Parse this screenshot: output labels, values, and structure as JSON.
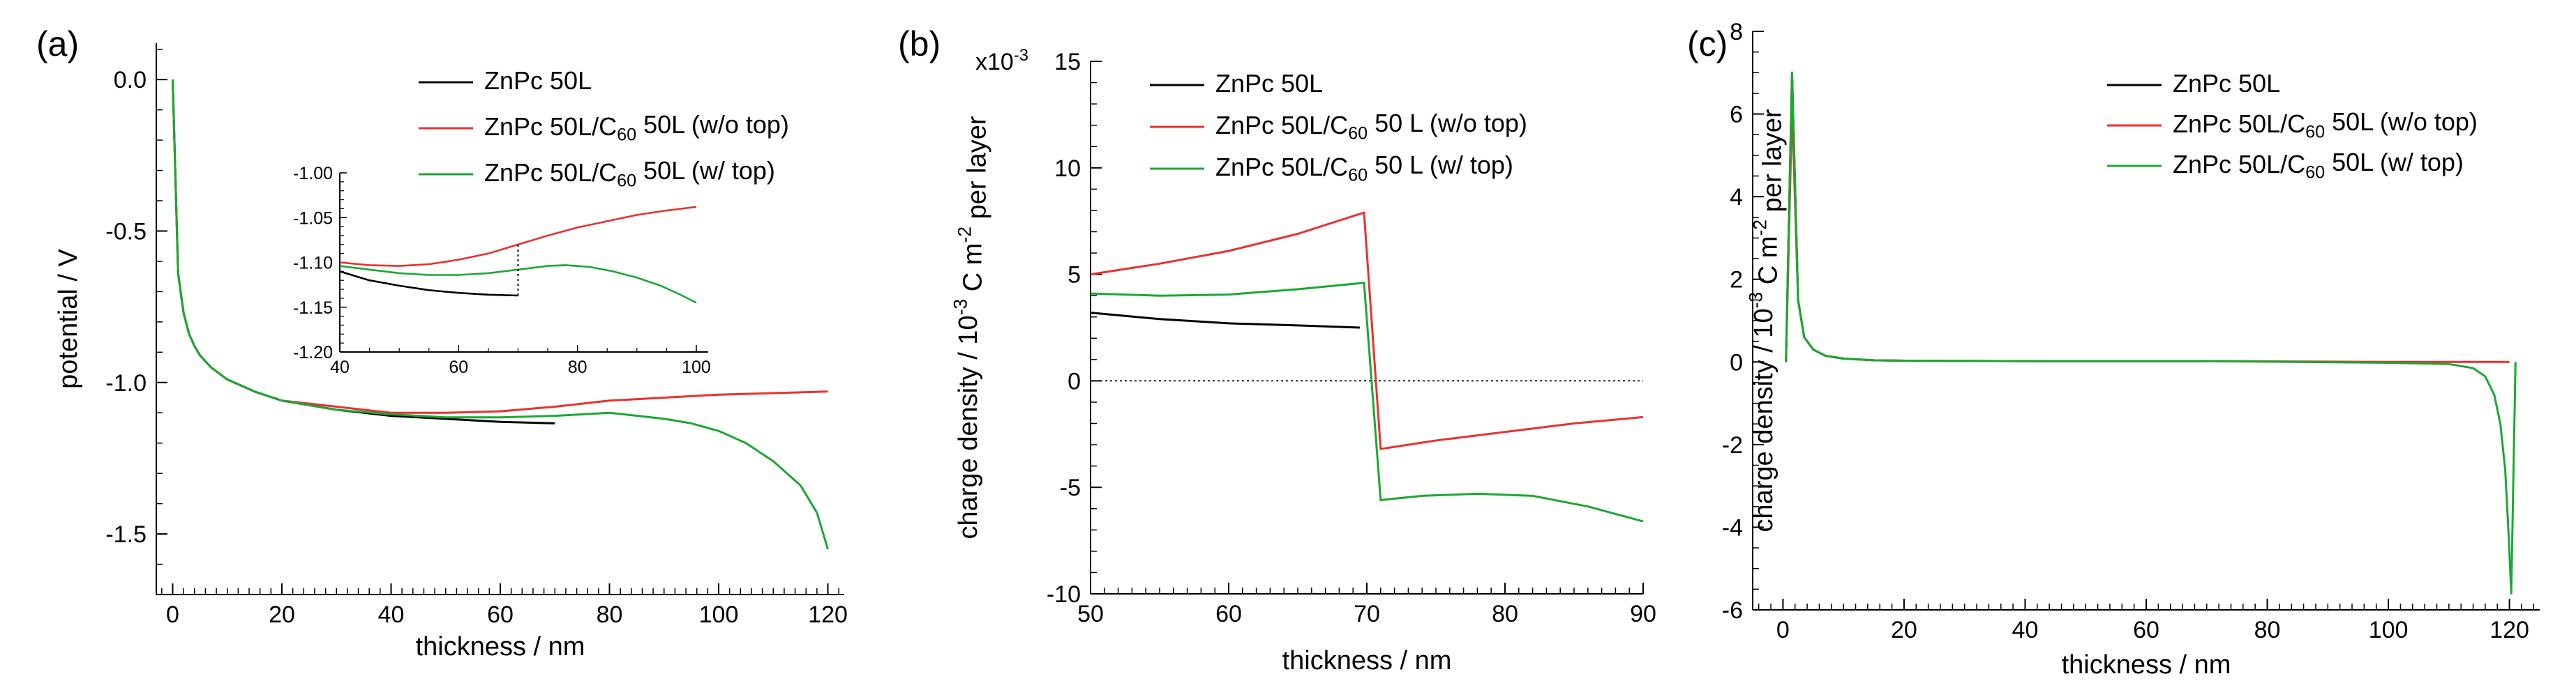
{
  "figure": {
    "panels": [
      {
        "id": "a",
        "label": "(a)",
        "chart_data": {
          "type": "line",
          "title": "",
          "xlabel": "thickness / nm",
          "ylabel": "potential / V",
          "xlim": [
            -3,
            123
          ],
          "ylim": [
            -1.7,
            0.12
          ],
          "xticks": [
            0,
            20,
            40,
            60,
            80,
            100,
            120
          ],
          "xtick_labels": [
            "0",
            "20",
            "40",
            "60",
            "80",
            "100",
            "120"
          ],
          "yticks": [
            0,
            -0.5,
            -1,
            -1.5
          ],
          "ytick_labels": [
            "0.0",
            "-0.5",
            "-1.0",
            "-1.5"
          ],
          "grid": false,
          "legend": "top-right",
          "series": [
            {
              "name": "ZnPc 50L",
              "color": "#000000",
              "x": [
                0,
                1,
                2,
                3,
                4,
                5,
                7,
                10,
                15,
                20,
                30,
                40,
                50,
                60,
                70
              ],
              "y": [
                0,
                -0.64,
                -0.77,
                -0.84,
                -0.88,
                -0.91,
                -0.95,
                -0.99,
                -1.03,
                -1.06,
                -1.09,
                -1.11,
                -1.12,
                -1.13,
                -1.135
              ]
            },
            {
              "name": "ZnPc 50L/C60 50L (w/o top)",
              "color": "#e8312f",
              "x": [
                0,
                1,
                2,
                3,
                4,
                5,
                7,
                10,
                15,
                20,
                30,
                40,
                50,
                60,
                70,
                80,
                90,
                100,
                110,
                120
              ],
              "y": [
                0,
                -0.64,
                -0.77,
                -0.84,
                -0.88,
                -0.91,
                -0.95,
                -0.99,
                -1.03,
                -1.06,
                -1.08,
                -1.1,
                -1.1,
                -1.095,
                -1.08,
                -1.06,
                -1.05,
                -1.04,
                -1.035,
                -1.03
              ]
            },
            {
              "name": "ZnPc 50L/C60 50L (w/ top)",
              "color": "#1aa834",
              "x": [
                0,
                1,
                2,
                3,
                4,
                5,
                7,
                10,
                15,
                20,
                30,
                40,
                50,
                60,
                70,
                80,
                90,
                95,
                100,
                105,
                110,
                115,
                118,
                120
              ],
              "y": [
                0,
                -0.64,
                -0.77,
                -0.84,
                -0.88,
                -0.91,
                -0.95,
                -0.99,
                -1.03,
                -1.06,
                -1.09,
                -1.105,
                -1.115,
                -1.115,
                -1.11,
                -1.1,
                -1.12,
                -1.135,
                -1.16,
                -1.2,
                -1.26,
                -1.34,
                -1.43,
                -1.55
              ]
            }
          ],
          "inset": {
            "xlim": [
              40,
              102
            ],
            "ylim": [
              -1.2,
              -1.0
            ],
            "xticks": [
              40,
              60,
              80,
              100
            ],
            "xtick_labels": [
              "40",
              "60",
              "80",
              "100"
            ],
            "yticks": [
              -1.0,
              -1.05,
              -1.1,
              -1.15,
              -1.2
            ],
            "ytick_labels": [
              "-1.00",
              "-1.05",
              "-1.10",
              "-1.15",
              "-1.20"
            ],
            "series": [
              {
                "color": "#000000",
                "x": [
                  40,
                  45,
                  50,
                  55,
                  60,
                  65,
                  70
                ],
                "y": [
                  -1.11,
                  -1.12,
                  -1.126,
                  -1.131,
                  -1.134,
                  -1.136,
                  -1.137
                ]
              },
              {
                "color": "#e8312f",
                "x": [
                  40,
                  45,
                  50,
                  55,
                  60,
                  65,
                  70,
                  75,
                  80,
                  85,
                  90,
                  95,
                  100
                ],
                "y": [
                  -1.1,
                  -1.103,
                  -1.104,
                  -1.102,
                  -1.097,
                  -1.09,
                  -1.08,
                  -1.07,
                  -1.061,
                  -1.054,
                  -1.047,
                  -1.042,
                  -1.038
                ]
              },
              {
                "color": "#1aa834",
                "x": [
                  40,
                  45,
                  50,
                  55,
                  60,
                  65,
                  70,
                  75,
                  78,
                  82,
                  86,
                  90,
                  94,
                  97,
                  100
                ],
                "y": [
                  -1.104,
                  -1.108,
                  -1.112,
                  -1.114,
                  -1.114,
                  -1.112,
                  -1.108,
                  -1.104,
                  -1.103,
                  -1.105,
                  -1.11,
                  -1.117,
                  -1.126,
                  -1.135,
                  -1.145
                ]
              }
            ],
            "marker": {
              "x": 70,
              "y_from": -1.137,
              "y_to": -1.08
            }
          }
        },
        "legend": [
          {
            "parts": [
              {
                "t": "ZnPc 50L"
              }
            ]
          },
          {
            "parts": [
              {
                "t": "ZnPc 50L/C"
              },
              {
                "t": "60",
                "sub": true
              },
              {
                "t": " 50L (w/o top)"
              }
            ]
          },
          {
            "parts": [
              {
                "t": "ZnPc 50L/C"
              },
              {
                "t": "60",
                "sub": true
              },
              {
                "t": " 50L (w/ top)"
              }
            ]
          }
        ]
      },
      {
        "id": "b",
        "label": "(b)",
        "chart_data": {
          "type": "line",
          "title": "",
          "xlabel": "thickness / nm",
          "ylabel_parts": [
            {
              "t": "charge density / 10"
            },
            {
              "t": "-3",
              "sup": true
            },
            {
              "t": " C m"
            },
            {
              "t": "-2",
              "sup": true
            },
            {
              "t": " per layer"
            }
          ],
          "xlim": [
            50,
            90
          ],
          "ylim": [
            -10,
            15
          ],
          "xticks": [
            50,
            60,
            70,
            80,
            90
          ],
          "xtick_labels": [
            "50",
            "60",
            "70",
            "80",
            "90"
          ],
          "yticks": [
            -10,
            -5,
            0,
            5,
            10,
            15
          ],
          "ytick_labels": [
            "-10",
            "-5",
            "0",
            "5",
            "10",
            "15"
          ],
          "y_multiplier_parts": [
            {
              "t": "x10"
            },
            {
              "t": "-3",
              "sup": true
            }
          ],
          "grid": false,
          "zero_line": true,
          "legend": "top-right",
          "series": [
            {
              "name": "ZnPc 50L",
              "color": "#000000",
              "x": [
                50,
                55,
                60,
                65,
                69.5
              ],
              "y": [
                3.2,
                2.9,
                2.7,
                2.6,
                2.5
              ]
            },
            {
              "name": "ZnPc 50L/C60 50 L (w/o top)",
              "color": "#e8312f",
              "x": [
                50,
                55,
                60,
                65,
                69.8,
                71,
                75,
                80,
                85,
                90
              ],
              "y": [
                5.0,
                5.5,
                6.1,
                6.9,
                7.9,
                -3.2,
                -2.8,
                -2.4,
                -2.0,
                -1.7
              ]
            },
            {
              "name": "ZnPc 50L/C60 50 L (w/ top)",
              "color": "#1aa834",
              "x": [
                50,
                55,
                60,
                65,
                69.8,
                71,
                74,
                78,
                82,
                86,
                90
              ],
              "y": [
                4.1,
                4.0,
                4.05,
                4.3,
                4.6,
                -5.6,
                -5.4,
                -5.3,
                -5.4,
                -5.9,
                -6.6
              ]
            }
          ]
        },
        "legend": [
          {
            "parts": [
              {
                "t": "ZnPc 50L"
              }
            ]
          },
          {
            "parts": [
              {
                "t": "ZnPc 50L/C"
              },
              {
                "t": "60",
                "sub": true
              },
              {
                "t": " 50 L (w/o top)"
              }
            ]
          },
          {
            "parts": [
              {
                "t": "ZnPc 50L/C"
              },
              {
                "t": "60",
                "sub": true
              },
              {
                "t": " 50 L (w/ top)"
              }
            ]
          }
        ]
      },
      {
        "id": "c",
        "label": "(c)",
        "chart_data": {
          "type": "line",
          "title": "",
          "xlabel": "thickness / nm",
          "ylabel_parts": [
            {
              "t": "charge density / 10"
            },
            {
              "t": "-3",
              "sup": true
            },
            {
              "t": " C m"
            },
            {
              "t": "-2",
              "sup": true
            },
            {
              "t": " per layer"
            }
          ],
          "xlim": [
            -5,
            125
          ],
          "ylim": [
            -6,
            8
          ],
          "xticks": [
            0,
            20,
            40,
            60,
            80,
            100,
            120
          ],
          "xtick_labels": [
            "0",
            "20",
            "40",
            "60",
            "80",
            "100",
            "120"
          ],
          "yticks": [
            -6,
            -4,
            -2,
            0,
            2,
            4,
            6,
            8
          ],
          "ytick_labels": [
            "-6",
            "-4",
            "-2",
            "0",
            "2",
            "4",
            "6",
            "8"
          ],
          "grid": false,
          "legend": "top-right",
          "series": [
            {
              "name": "ZnPc 50L",
              "color": "#000000",
              "x": [
                0.5,
                1.5,
                2.5,
                3.5,
                5,
                7,
                10,
                15,
                20,
                40,
                70
              ],
              "y": [
                0,
                7.0,
                1.5,
                0.6,
                0.3,
                0.15,
                0.08,
                0.04,
                0.03,
                0.02,
                0.02
              ]
            },
            {
              "name": "ZnPc 50L/C60 50L (w/o top)",
              "color": "#e8312f",
              "x": [
                0.5,
                1.5,
                2.5,
                3.5,
                5,
                7,
                10,
                15,
                20,
                40,
                70,
                100,
                120
              ],
              "y": [
                0,
                6.2,
                1.5,
                0.6,
                0.3,
                0.15,
                0.08,
                0.04,
                0.03,
                0.02,
                0.02,
                0,
                0
              ]
            },
            {
              "name": "ZnPc 50L/C60 50L (w/ top)",
              "color": "#1aa834",
              "x": [
                0.5,
                1.5,
                2.5,
                3.5,
                5,
                7,
                10,
                15,
                20,
                40,
                70,
                100,
                110,
                114,
                116,
                117.5,
                118.5,
                119.3,
                119.8,
                120.3,
                121
              ],
              "y": [
                0,
                7.0,
                1.5,
                0.6,
                0.3,
                0.15,
                0.08,
                0.04,
                0.03,
                0.02,
                0.02,
                -0.02,
                -0.05,
                -0.15,
                -0.35,
                -0.8,
                -1.5,
                -2.6,
                -4.0,
                -5.6,
                0
              ]
            }
          ]
        },
        "legend": [
          {
            "parts": [
              {
                "t": "ZnPc 50L"
              }
            ]
          },
          {
            "parts": [
              {
                "t": "ZnPc 50L/C"
              },
              {
                "t": "60",
                "sub": true
              },
              {
                "t": " 50L (w/o top)"
              }
            ]
          },
          {
            "parts": [
              {
                "t": "ZnPc 50L/C"
              },
              {
                "t": "60",
                "sub": true
              },
              {
                "t": " 50L (w/ top)"
              }
            ]
          }
        ]
      }
    ]
  }
}
